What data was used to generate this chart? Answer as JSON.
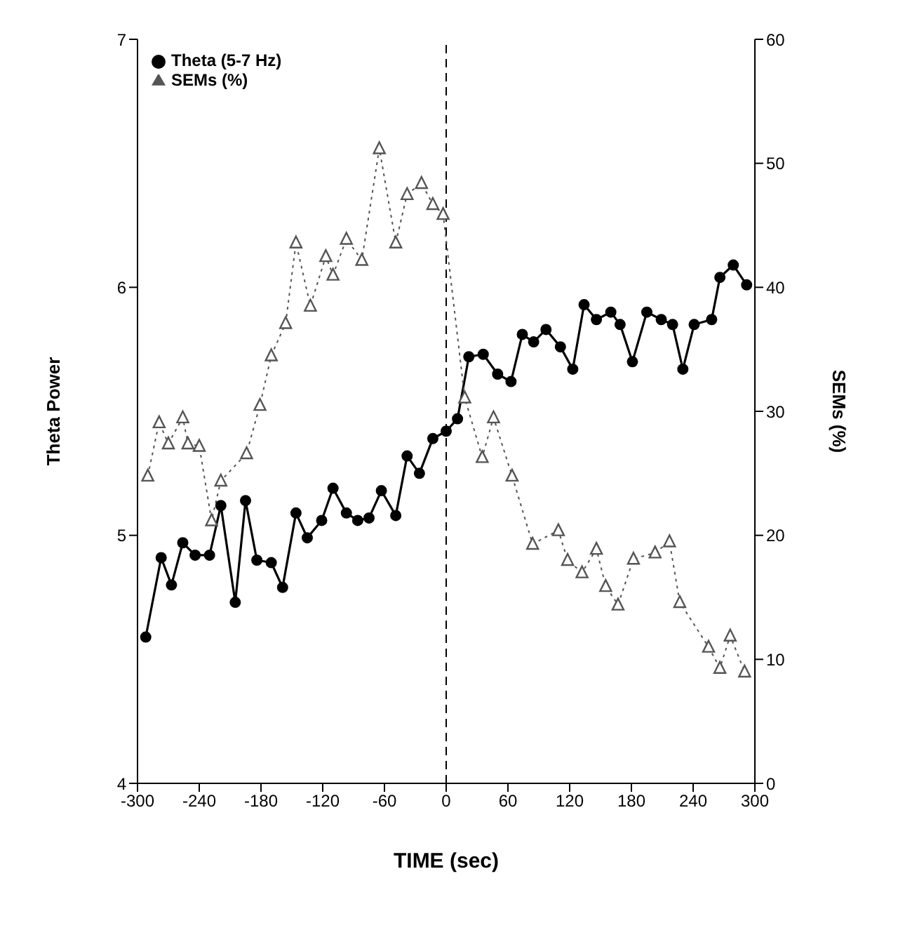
{
  "chart_data": {
    "type": "line",
    "xlabel": "TIME (sec)",
    "ylabel": "Theta Power",
    "y2label": "SEMs (%)",
    "xlim": [
      -300,
      300
    ],
    "xticks": [
      -300,
      -240,
      -180,
      -120,
      -60,
      0,
      60,
      120,
      180,
      240,
      300
    ],
    "ylim": [
      4,
      7
    ],
    "yticks": [
      4,
      5,
      6,
      7
    ],
    "y2lim": [
      0,
      60
    ],
    "y2ticks": [
      0,
      10,
      20,
      30,
      40,
      50,
      60
    ],
    "grid": false,
    "legend": "top left",
    "ref_lines": [
      {
        "axis": "x",
        "value": 0,
        "line_style": "dashed",
        "color": "#000000"
      }
    ],
    "series": [
      {
        "name": "Theta (5-7 Hz)",
        "color": "#000000",
        "marker": "circle",
        "line_style": "solid",
        "x": [
          -292,
          -277,
          -267,
          -256,
          -244,
          -230,
          -219,
          -205,
          -195,
          -184,
          -170,
          -159,
          -146,
          -135,
          -121,
          -110,
          -97,
          -86,
          -75,
          -63,
          -49,
          -38,
          -26,
          -13,
          0,
          11,
          22,
          36,
          50,
          63,
          74,
          85,
          97,
          111,
          123,
          134,
          146,
          160,
          169,
          181,
          195,
          209,
          220,
          230,
          241,
          258,
          266,
          279,
          292
        ],
        "values": [
          4.59,
          4.91,
          4.8,
          4.97,
          4.92,
          4.92,
          5.12,
          4.73,
          5.14,
          4.9,
          4.89,
          4.79,
          5.09,
          4.99,
          5.06,
          5.19,
          5.09,
          5.06,
          5.07,
          5.18,
          5.08,
          5.32,
          5.25,
          5.39,
          5.42,
          5.47,
          5.72,
          5.73,
          5.65,
          5.62,
          5.81,
          5.78,
          5.83,
          5.76,
          5.67,
          5.93,
          5.87,
          5.9,
          5.85,
          5.7,
          5.9,
          5.87,
          5.85,
          5.67,
          5.85,
          5.87,
          6.04,
          6.09,
          6.01
        ]
      },
      {
        "name": "SEMs (%)",
        "color": "#555555",
        "marker": "triangle",
        "line_style": "dotted",
        "axis": "y2",
        "x": [
          -290,
          -279,
          -270,
          -256,
          -251,
          -240,
          -228,
          -219,
          -194,
          -181,
          -170,
          -156,
          -146,
          -132,
          -117,
          -110,
          -97,
          -82,
          -65,
          -49,
          -38,
          -24,
          -13,
          -3,
          18,
          35,
          46,
          64,
          84,
          109,
          118,
          132,
          146,
          155,
          167,
          182,
          203,
          217,
          227,
          255,
          266,
          276,
          290
        ],
        "values": [
          24.8,
          29.1,
          27.4,
          29.5,
          27.4,
          27.2,
          21.2,
          24.4,
          26.6,
          30.5,
          34.5,
          37.1,
          43.6,
          38.5,
          42.5,
          41,
          43.9,
          42.2,
          51.2,
          43.6,
          47.5,
          48.4,
          46.7,
          45.9,
          31.1,
          26.3,
          29.5,
          24.8,
          19.3,
          20.4,
          18,
          17,
          18.9,
          15.9,
          14.4,
          18.1,
          18.6,
          19.5,
          14.6,
          11,
          9.3,
          11.9,
          9
        ]
      }
    ]
  }
}
